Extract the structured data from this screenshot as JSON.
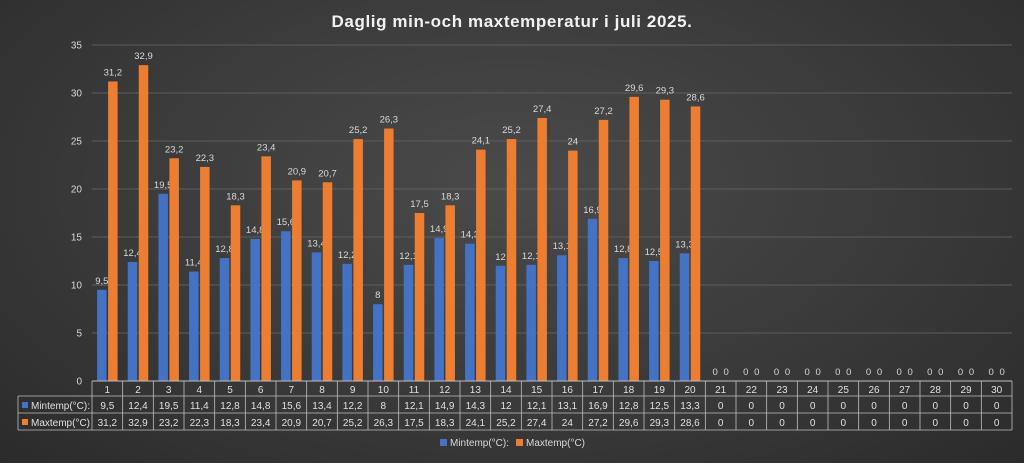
{
  "chart_data": {
    "type": "bar",
    "title": "Daglig min-och maxtemperatur i juli 2025.",
    "xlabel": "",
    "ylabel": "",
    "ylim": [
      0,
      35
    ],
    "yticks": [
      0,
      5,
      10,
      15,
      20,
      25,
      30,
      35
    ],
    "grid": true,
    "legend_position": "bottom",
    "data_table": true,
    "categories": [
      "1",
      "2",
      "3",
      "4",
      "5",
      "6",
      "7",
      "8",
      "9",
      "10",
      "11",
      "12",
      "13",
      "14",
      "15",
      "16",
      "17",
      "18",
      "19",
      "20",
      "21",
      "22",
      "23",
      "24",
      "25",
      "26",
      "27",
      "28",
      "29",
      "30"
    ],
    "series": [
      {
        "name": "Mintemp(°C):",
        "color": "#4472c4",
        "values": [
          9.5,
          12.4,
          19.5,
          11.4,
          12.8,
          14.8,
          15.6,
          13.4,
          12.2,
          8,
          12.1,
          14.9,
          14.3,
          12,
          12.1,
          13.1,
          16.9,
          12.8,
          12.5,
          13.3,
          0,
          0,
          0,
          0,
          0,
          0,
          0,
          0,
          0,
          0
        ],
        "labels": [
          "9,5",
          "12,4",
          "19,5",
          "11,4",
          "12,8",
          "14,8",
          "15,6",
          "13,4",
          "12,2",
          "8",
          "12,1",
          "14,9",
          "14,3",
          "12",
          "12,1",
          "13,1",
          "16,9",
          "12,8",
          "12,5",
          "13,3",
          "0",
          "0",
          "0",
          "0",
          "0",
          "0",
          "0",
          "0",
          "0",
          "0"
        ]
      },
      {
        "name": "Maxtemp(°C)",
        "color": "#ed7d31",
        "values": [
          31.2,
          32.9,
          23.2,
          22.3,
          18.3,
          23.4,
          20.9,
          20.7,
          25.2,
          26.3,
          17.5,
          18.3,
          24.1,
          25.2,
          27.4,
          24,
          27.2,
          29.6,
          29.3,
          28.6,
          0,
          0,
          0,
          0,
          0,
          0,
          0,
          0,
          0,
          0
        ],
        "labels": [
          "31,2",
          "32,9",
          "23,2",
          "22,3",
          "18,3",
          "23,4",
          "20,9",
          "20,7",
          "25,2",
          "26,3",
          "17,5",
          "18,3",
          "24,1",
          "25,2",
          "27,4",
          "24",
          "27,2",
          "29,6",
          "29,3",
          "28,6",
          "0",
          "0",
          "0",
          "0",
          "0",
          "0",
          "0",
          "0",
          "0",
          "0"
        ]
      }
    ]
  }
}
